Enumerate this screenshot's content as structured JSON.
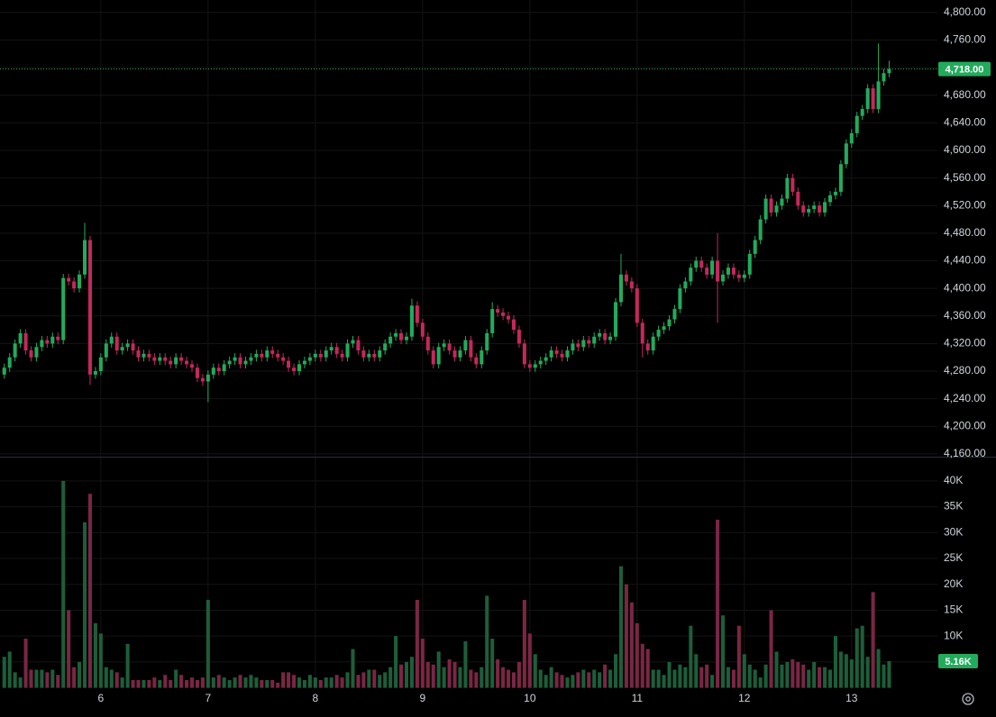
{
  "chart_data": {
    "type": "candlestick",
    "open": [
      4275,
      4285,
      4300,
      4320,
      4335,
      4310,
      4300,
      4315,
      4325,
      4320,
      4330,
      4325,
      4415,
      4410,
      4400,
      4420,
      4470,
      4275,
      4280,
      4300,
      4320,
      4330,
      4310,
      4315,
      4320,
      4310,
      4300,
      4305,
      4300,
      4295,
      4300,
      4295,
      4290,
      4300,
      4295,
      4290,
      4285,
      4270,
      4265,
      4275,
      4285,
      4280,
      4290,
      4295,
      4300,
      4290,
      4295,
      4300,
      4305,
      4300,
      4310,
      4305,
      4300,
      4295,
      4285,
      4280,
      4290,
      4295,
      4300,
      4305,
      4300,
      4310,
      4315,
      4305,
      4300,
      4320,
      4325,
      4310,
      4300,
      4305,
      4300,
      4310,
      4320,
      4330,
      4335,
      4325,
      4330,
      4375,
      4350,
      4330,
      4310,
      4290,
      4315,
      4320,
      4310,
      4300,
      4310,
      4325,
      4300,
      4290,
      4310,
      4335,
      4370,
      4365,
      4360,
      4355,
      4340,
      4320,
      4290,
      4285,
      4290,
      4295,
      4300,
      4310,
      4305,
      4300,
      4310,
      4320,
      4315,
      4325,
      4320,
      4330,
      4335,
      4325,
      4330,
      4380,
      4420,
      4410,
      4400,
      4350,
      4320,
      4310,
      4330,
      4340,
      4345,
      4355,
      4370,
      4400,
      4410,
      4430,
      4440,
      4430,
      4420,
      4440,
      4410,
      4420,
      4430,
      4420,
      4415,
      4420,
      4450,
      4470,
      4500,
      4530,
      4510,
      4520,
      4530,
      4560,
      4540,
      4520,
      4510,
      4515,
      4520,
      4510,
      4525,
      4535,
      4540,
      4580,
      4610,
      4625,
      4650,
      4660,
      4690,
      4660,
      4700,
      4712
    ],
    "high": [
      4291,
      4306,
      4326,
      4341,
      4341,
      4316,
      4321,
      4331,
      4331,
      4336,
      4336,
      4421,
      4421,
      4416,
      4426,
      4495,
      4476,
      4286,
      4306,
      4326,
      4336,
      4336,
      4321,
      4326,
      4326,
      4316,
      4311,
      4311,
      4306,
      4306,
      4306,
      4301,
      4306,
      4306,
      4301,
      4296,
      4291,
      4276,
      4281,
      4291,
      4291,
      4296,
      4301,
      4306,
      4306,
      4301,
      4306,
      4311,
      4311,
      4316,
      4316,
      4311,
      4306,
      4301,
      4291,
      4296,
      4301,
      4306,
      4311,
      4311,
      4316,
      4321,
      4321,
      4311,
      4326,
      4331,
      4331,
      4316,
      4311,
      4311,
      4316,
      4326,
      4336,
      4341,
      4341,
      4336,
      4385,
      4381,
      4356,
      4336,
      4316,
      4321,
      4326,
      4326,
      4316,
      4316,
      4331,
      4331,
      4306,
      4316,
      4341,
      4380,
      4376,
      4371,
      4366,
      4361,
      4346,
      4326,
      4296,
      4296,
      4301,
      4306,
      4316,
      4316,
      4311,
      4316,
      4326,
      4326,
      4331,
      4331,
      4336,
      4341,
      4341,
      4336,
      4386,
      4450,
      4426,
      4416,
      4406,
      4356,
      4326,
      4336,
      4346,
      4351,
      4361,
      4376,
      4406,
      4416,
      4436,
      4446,
      4446,
      4436,
      4446,
      4480,
      4426,
      4436,
      4436,
      4426,
      4426,
      4456,
      4476,
      4506,
      4536,
      4536,
      4526,
      4536,
      4566,
      4566,
      4546,
      4526,
      4521,
      4526,
      4526,
      4531,
      4541,
      4546,
      4586,
      4616,
      4631,
      4656,
      4666,
      4696,
      4696,
      4755,
      4718,
      4730
    ],
    "low": [
      4269,
      4279,
      4294,
      4314,
      4304,
      4294,
      4294,
      4309,
      4314,
      4314,
      4319,
      4319,
      4404,
      4394,
      4394,
      4414,
      4260,
      4269,
      4274,
      4294,
      4314,
      4304,
      4304,
      4309,
      4304,
      4294,
      4294,
      4294,
      4289,
      4289,
      4289,
      4284,
      4284,
      4289,
      4284,
      4279,
      4264,
      4259,
      4235,
      4269,
      4274,
      4274,
      4284,
      4289,
      4284,
      4284,
      4289,
      4294,
      4294,
      4294,
      4299,
      4294,
      4289,
      4279,
      4274,
      4274,
      4284,
      4289,
      4294,
      4294,
      4294,
      4304,
      4299,
      4294,
      4294,
      4314,
      4304,
      4294,
      4294,
      4294,
      4294,
      4304,
      4314,
      4324,
      4319,
      4319,
      4324,
      4344,
      4324,
      4304,
      4284,
      4284,
      4309,
      4304,
      4294,
      4294,
      4304,
      4294,
      4284,
      4284,
      4304,
      4329,
      4359,
      4354,
      4349,
      4334,
      4314,
      4284,
      4279,
      4279,
      4284,
      4289,
      4294,
      4299,
      4294,
      4294,
      4304,
      4309,
      4309,
      4314,
      4314,
      4324,
      4319,
      4319,
      4324,
      4374,
      4404,
      4394,
      4344,
      4300,
      4304,
      4304,
      4324,
      4334,
      4339,
      4349,
      4364,
      4394,
      4404,
      4424,
      4424,
      4414,
      4414,
      4350,
      4404,
      4414,
      4414,
      4409,
      4409,
      4414,
      4444,
      4464,
      4494,
      4504,
      4504,
      4514,
      4524,
      4534,
      4514,
      4504,
      4504,
      4509,
      4504,
      4504,
      4519,
      4529,
      4534,
      4574,
      4604,
      4619,
      4644,
      4654,
      4654,
      4654,
      4694,
      4706
    ],
    "close": [
      4285,
      4300,
      4320,
      4335,
      4310,
      4300,
      4315,
      4325,
      4320,
      4330,
      4325,
      4415,
      4410,
      4400,
      4420,
      4470,
      4275,
      4280,
      4300,
      4320,
      4330,
      4310,
      4315,
      4320,
      4310,
      4300,
      4305,
      4300,
      4295,
      4300,
      4295,
      4290,
      4300,
      4295,
      4290,
      4285,
      4270,
      4265,
      4275,
      4285,
      4280,
      4290,
      4295,
      4300,
      4290,
      4295,
      4300,
      4305,
      4300,
      4310,
      4305,
      4300,
      4295,
      4285,
      4280,
      4290,
      4295,
      4300,
      4305,
      4300,
      4310,
      4315,
      4305,
      4300,
      4320,
      4325,
      4310,
      4300,
      4305,
      4300,
      4310,
      4320,
      4330,
      4335,
      4325,
      4330,
      4375,
      4350,
      4330,
      4310,
      4290,
      4315,
      4320,
      4310,
      4300,
      4310,
      4325,
      4300,
      4290,
      4310,
      4335,
      4370,
      4365,
      4360,
      4355,
      4340,
      4320,
      4290,
      4285,
      4290,
      4295,
      4300,
      4310,
      4305,
      4300,
      4310,
      4320,
      4315,
      4325,
      4320,
      4330,
      4335,
      4325,
      4330,
      4380,
      4420,
      4410,
      4400,
      4350,
      4320,
      4310,
      4330,
      4340,
      4345,
      4355,
      4370,
      4400,
      4410,
      4430,
      4440,
      4430,
      4420,
      4440,
      4410,
      4420,
      4430,
      4420,
      4415,
      4420,
      4450,
      4470,
      4500,
      4530,
      4510,
      4520,
      4530,
      4560,
      4540,
      4520,
      4510,
      4515,
      4520,
      4510,
      4525,
      4535,
      4540,
      4580,
      4610,
      4625,
      4650,
      4660,
      4690,
      4660,
      4700,
      4712,
      4718
    ],
    "up_color": "#22ab5c",
    "down_color": "#c4285c",
    "xlim": [
      -0.8,
      174
    ],
    "xticks": [
      {
        "value": 18,
        "label": "6"
      },
      {
        "value": 38,
        "label": "7"
      },
      {
        "value": 58,
        "label": "8"
      },
      {
        "value": 78,
        "label": "9"
      },
      {
        "value": 98,
        "label": "10"
      },
      {
        "value": 118,
        "label": "11"
      },
      {
        "value": 138,
        "label": "12"
      },
      {
        "value": 158,
        "label": "13"
      }
    ],
    "ylim": [
      4156,
      4818
    ],
    "yticks": [
      {
        "value": 4160,
        "label": "4,160.00"
      },
      {
        "value": 4200,
        "label": "4,200.00"
      },
      {
        "value": 4240,
        "label": "4,240.00"
      },
      {
        "value": 4280,
        "label": "4,280.00"
      },
      {
        "value": 4320,
        "label": "4,320.00"
      },
      {
        "value": 4360,
        "label": "4,360.00"
      },
      {
        "value": 4400,
        "label": "4,400.00"
      },
      {
        "value": 4440,
        "label": "4,440.00"
      },
      {
        "value": 4480,
        "label": "4,480.00"
      },
      {
        "value": 4520,
        "label": "4,520.00"
      },
      {
        "value": 4560,
        "label": "4,560.00"
      },
      {
        "value": 4600,
        "label": "4,600.00"
      },
      {
        "value": 4640,
        "label": "4,640.00"
      },
      {
        "value": 4680,
        "label": "4,680.00"
      },
      {
        "value": 4720,
        "label": "4,720.00"
      },
      {
        "value": 4760,
        "label": "4,760.00"
      },
      {
        "value": 4800,
        "label": "4,800.00"
      }
    ],
    "grid": true,
    "last_price": {
      "value": 4718,
      "label": "4,718.00"
    },
    "volume": {
      "values": [
        6000,
        7000,
        3000,
        2000,
        9500,
        3500,
        3500,
        3500,
        3000,
        3500,
        2500,
        40000,
        15000,
        4000,
        5000,
        32000,
        37500,
        12500,
        10500,
        4000,
        3500,
        3000,
        2000,
        8500,
        1500,
        1500,
        1500,
        1500,
        2000,
        1500,
        2500,
        1500,
        3500,
        2500,
        1500,
        2000,
        1500,
        2000,
        17000,
        2000,
        2500,
        2000,
        1500,
        2000,
        2500,
        2000,
        2500,
        2000,
        1500,
        1500,
        1500,
        1000,
        3000,
        3000,
        2500,
        2000,
        1500,
        2500,
        2000,
        1500,
        2000,
        2000,
        2500,
        2000,
        3000,
        7500,
        2500,
        3000,
        3500,
        3500,
        2500,
        3000,
        4000,
        10000,
        4500,
        5000,
        6000,
        17000,
        9500,
        5000,
        4500,
        7000,
        4000,
        5500,
        5000,
        4000,
        9000,
        3500,
        3000,
        4000,
        17800,
        9500,
        5500,
        4000,
        3500,
        3000,
        5000,
        17000,
        10500,
        6500,
        3500,
        2500,
        4000,
        3000,
        2500,
        2000,
        2500,
        3000,
        3500,
        3000,
        3500,
        3000,
        4500,
        3500,
        6500,
        23500,
        20000,
        16500,
        12500,
        8500,
        7500,
        3500,
        3500,
        2500,
        5000,
        3500,
        4500,
        4000,
        12000,
        6500,
        4000,
        4500,
        2500,
        32500,
        14000,
        4000,
        3500,
        12000,
        6500,
        4500,
        3500,
        2000,
        4500,
        15000,
        7000,
        4500,
        5000,
        5500,
        5000,
        4500,
        3500,
        5000,
        4000,
        4000,
        3500,
        10000,
        7000,
        6500,
        5500,
        11500,
        12000,
        6000,
        18500,
        7500,
        4500,
        5160
      ],
      "up_color": "#1d5e3a",
      "down_color": "#7a2644",
      "ylim": [
        -240,
        44500
      ],
      "yticks": [
        {
          "value": 5000,
          "label": "5K"
        },
        {
          "value": 10000,
          "label": "10K"
        },
        {
          "value": 15000,
          "label": "15K"
        },
        {
          "value": 20000,
          "label": "20K"
        },
        {
          "value": 25000,
          "label": "25K"
        },
        {
          "value": 30000,
          "label": "30K"
        },
        {
          "value": 35000,
          "label": "35K"
        },
        {
          "value": 40000,
          "label": "40K"
        }
      ],
      "last_volume": {
        "value": 5160,
        "label": "5.16K"
      }
    }
  }
}
